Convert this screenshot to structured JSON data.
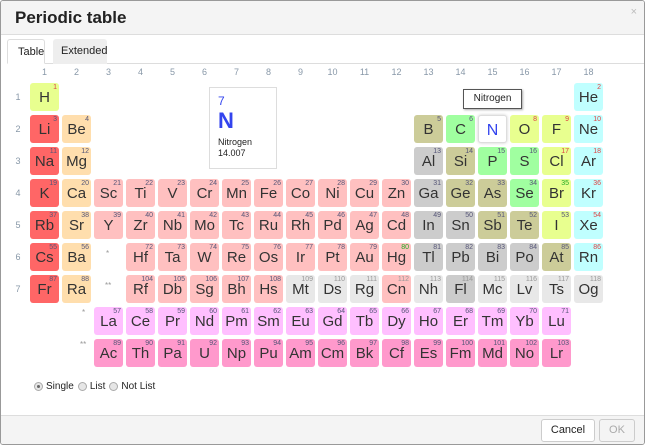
{
  "dialog": {
    "title": "Periodic table",
    "close_label": "×"
  },
  "tabs": [
    {
      "label": "Table",
      "active": true
    },
    {
      "label": "Extended",
      "active": false
    }
  ],
  "groups": [
    "1",
    "2",
    "3",
    "4",
    "5",
    "6",
    "7",
    "8",
    "9",
    "10",
    "11",
    "12",
    "13",
    "14",
    "15",
    "16",
    "17",
    "18"
  ],
  "periods": [
    "1",
    "2",
    "3",
    "4",
    "5",
    "6",
    "7"
  ],
  "markers": {
    "lanthanide": "*",
    "actinide": "**"
  },
  "selected": {
    "number": "7",
    "symbol": "N",
    "name": "Nitrogen",
    "mass": "14.007"
  },
  "tooltip": "Nitrogen",
  "category_colors": {
    "am": "#ff6666",
    "ae": "#ffdead",
    "tm": "#ffc0c0",
    "pt": "#cccccc",
    "md": "#cccc99",
    "nm": "#a0ffa0",
    "hl": "#e8ff8f",
    "ng": "#c0ffff",
    "un": "#e8e8e8",
    "la": "#ffbfff",
    "ac": "#ff99cc"
  },
  "elements": [
    [
      "H",
      1,
      1,
      1,
      "hl",
      "g"
    ],
    [
      "He",
      2,
      1,
      18,
      "ng",
      "g"
    ],
    [
      "Li",
      3,
      2,
      1,
      "am",
      "s"
    ],
    [
      "Be",
      4,
      2,
      2,
      "ae",
      "s"
    ],
    [
      "B",
      5,
      2,
      13,
      "md",
      "s"
    ],
    [
      "C",
      6,
      2,
      14,
      "nm",
      "s"
    ],
    [
      "N",
      7,
      2,
      15,
      "nm",
      "g"
    ],
    [
      "O",
      8,
      2,
      16,
      "hl",
      "g"
    ],
    [
      "F",
      9,
      2,
      17,
      "hl",
      "g"
    ],
    [
      "Ne",
      10,
      2,
      18,
      "ng",
      "g"
    ],
    [
      "Na",
      11,
      3,
      1,
      "am",
      "s"
    ],
    [
      "Mg",
      12,
      3,
      2,
      "ae",
      "s"
    ],
    [
      "Al",
      13,
      3,
      13,
      "pt",
      "s"
    ],
    [
      "Si",
      14,
      3,
      14,
      "md",
      "s"
    ],
    [
      "P",
      15,
      3,
      15,
      "nm",
      "s"
    ],
    [
      "S",
      16,
      3,
      16,
      "nm",
      "s"
    ],
    [
      "Cl",
      17,
      3,
      17,
      "hl",
      "g"
    ],
    [
      "Ar",
      18,
      3,
      18,
      "ng",
      "g"
    ],
    [
      "K",
      19,
      4,
      1,
      "am",
      "s"
    ],
    [
      "Ca",
      20,
      4,
      2,
      "ae",
      "s"
    ],
    [
      "Sc",
      21,
      4,
      3,
      "tm",
      "s"
    ],
    [
      "Ti",
      22,
      4,
      4,
      "tm",
      "s"
    ],
    [
      "V",
      23,
      4,
      5,
      "tm",
      "s"
    ],
    [
      "Cr",
      24,
      4,
      6,
      "tm",
      "s"
    ],
    [
      "Mn",
      25,
      4,
      7,
      "tm",
      "s"
    ],
    [
      "Fe",
      26,
      4,
      8,
      "tm",
      "s"
    ],
    [
      "Co",
      27,
      4,
      9,
      "tm",
      "s"
    ],
    [
      "Ni",
      28,
      4,
      10,
      "tm",
      "s"
    ],
    [
      "Cu",
      29,
      4,
      11,
      "tm",
      "s"
    ],
    [
      "Zn",
      30,
      4,
      12,
      "tm",
      "s"
    ],
    [
      "Ga",
      31,
      4,
      13,
      "pt",
      "s"
    ],
    [
      "Ge",
      32,
      4,
      14,
      "md",
      "s"
    ],
    [
      "As",
      33,
      4,
      15,
      "md",
      "s"
    ],
    [
      "Se",
      34,
      4,
      16,
      "nm",
      "s"
    ],
    [
      "Br",
      35,
      4,
      17,
      "hl",
      "l"
    ],
    [
      "Kr",
      36,
      4,
      18,
      "ng",
      "g"
    ],
    [
      "Rb",
      37,
      5,
      1,
      "am",
      "s"
    ],
    [
      "Sr",
      38,
      5,
      2,
      "ae",
      "s"
    ],
    [
      "Y",
      39,
      5,
      3,
      "tm",
      "s"
    ],
    [
      "Zr",
      40,
      5,
      4,
      "tm",
      "s"
    ],
    [
      "Nb",
      41,
      5,
      5,
      "tm",
      "s"
    ],
    [
      "Mo",
      42,
      5,
      6,
      "tm",
      "s"
    ],
    [
      "Tc",
      43,
      5,
      7,
      "tm",
      "s"
    ],
    [
      "Ru",
      44,
      5,
      8,
      "tm",
      "s"
    ],
    [
      "Rh",
      45,
      5,
      9,
      "tm",
      "s"
    ],
    [
      "Pd",
      46,
      5,
      10,
      "tm",
      "s"
    ],
    [
      "Ag",
      47,
      5,
      11,
      "tm",
      "s"
    ],
    [
      "Cd",
      48,
      5,
      12,
      "tm",
      "s"
    ],
    [
      "In",
      49,
      5,
      13,
      "pt",
      "s"
    ],
    [
      "Sn",
      50,
      5,
      14,
      "pt",
      "s"
    ],
    [
      "Sb",
      51,
      5,
      15,
      "md",
      "s"
    ],
    [
      "Te",
      52,
      5,
      16,
      "md",
      "s"
    ],
    [
      "I",
      53,
      5,
      17,
      "hl",
      "s"
    ],
    [
      "Xe",
      54,
      5,
      18,
      "ng",
      "g"
    ],
    [
      "Cs",
      55,
      6,
      1,
      "am",
      "s"
    ],
    [
      "Ba",
      56,
      6,
      2,
      "ae",
      "s"
    ],
    [
      "Hf",
      72,
      6,
      4,
      "tm",
      "s"
    ],
    [
      "Ta",
      73,
      6,
      5,
      "tm",
      "s"
    ],
    [
      "W",
      74,
      6,
      6,
      "tm",
      "s"
    ],
    [
      "Re",
      75,
      6,
      7,
      "tm",
      "s"
    ],
    [
      "Os",
      76,
      6,
      8,
      "tm",
      "s"
    ],
    [
      "Ir",
      77,
      6,
      9,
      "tm",
      "s"
    ],
    [
      "Pt",
      78,
      6,
      10,
      "tm",
      "s"
    ],
    [
      "Au",
      79,
      6,
      11,
      "tm",
      "s"
    ],
    [
      "Hg",
      80,
      6,
      12,
      "tm",
      "l"
    ],
    [
      "Tl",
      81,
      6,
      13,
      "pt",
      "s"
    ],
    [
      "Pb",
      82,
      6,
      14,
      "pt",
      "s"
    ],
    [
      "Bi",
      83,
      6,
      15,
      "pt",
      "s"
    ],
    [
      "Po",
      84,
      6,
      16,
      "pt",
      "s"
    ],
    [
      "At",
      85,
      6,
      17,
      "md",
      "s"
    ],
    [
      "Rn",
      86,
      6,
      18,
      "ng",
      "g"
    ],
    [
      "Fr",
      87,
      7,
      1,
      "am",
      "s"
    ],
    [
      "Ra",
      88,
      7,
      2,
      "ae",
      "s"
    ],
    [
      "Rf",
      104,
      7,
      4,
      "tm",
      "s"
    ],
    [
      "Db",
      105,
      7,
      5,
      "tm",
      "s"
    ],
    [
      "Sg",
      106,
      7,
      6,
      "tm",
      "s"
    ],
    [
      "Bh",
      107,
      7,
      7,
      "tm",
      "s"
    ],
    [
      "Hs",
      108,
      7,
      8,
      "tm",
      "s"
    ],
    [
      "Mt",
      109,
      7,
      9,
      "un",
      "x"
    ],
    [
      "Ds",
      110,
      7,
      10,
      "un",
      "x"
    ],
    [
      "Rg",
      111,
      7,
      11,
      "un",
      "x"
    ],
    [
      "Cn",
      112,
      7,
      12,
      "tm",
      "x"
    ],
    [
      "Nh",
      113,
      7,
      13,
      "un",
      "x"
    ],
    [
      "Fl",
      114,
      7,
      14,
      "pt",
      "x"
    ],
    [
      "Mc",
      115,
      7,
      15,
      "un",
      "x"
    ],
    [
      "Lv",
      116,
      7,
      16,
      "un",
      "x"
    ],
    [
      "Ts",
      117,
      7,
      17,
      "un",
      "x"
    ],
    [
      "Og",
      118,
      7,
      18,
      "un",
      "x"
    ],
    [
      "La",
      57,
      8,
      3,
      "la",
      "s"
    ],
    [
      "Ce",
      58,
      8,
      4,
      "la",
      "s"
    ],
    [
      "Pr",
      59,
      8,
      5,
      "la",
      "s"
    ],
    [
      "Nd",
      60,
      8,
      6,
      "la",
      "s"
    ],
    [
      "Pm",
      61,
      8,
      7,
      "la",
      "s"
    ],
    [
      "Sm",
      62,
      8,
      8,
      "la",
      "s"
    ],
    [
      "Eu",
      63,
      8,
      9,
      "la",
      "s"
    ],
    [
      "Gd",
      64,
      8,
      10,
      "la",
      "s"
    ],
    [
      "Tb",
      65,
      8,
      11,
      "la",
      "s"
    ],
    [
      "Dy",
      66,
      8,
      12,
      "la",
      "s"
    ],
    [
      "Ho",
      67,
      8,
      13,
      "la",
      "s"
    ],
    [
      "Er",
      68,
      8,
      14,
      "la",
      "s"
    ],
    [
      "Tm",
      69,
      8,
      15,
      "la",
      "s"
    ],
    [
      "Yb",
      70,
      8,
      16,
      "la",
      "s"
    ],
    [
      "Lu",
      71,
      8,
      17,
      "la",
      "s"
    ],
    [
      "Ac",
      89,
      9,
      3,
      "ac",
      "s"
    ],
    [
      "Th",
      90,
      9,
      4,
      "ac",
      "s"
    ],
    [
      "Pa",
      91,
      9,
      5,
      "ac",
      "s"
    ],
    [
      "U",
      92,
      9,
      6,
      "ac",
      "s"
    ],
    [
      "Np",
      93,
      9,
      7,
      "ac",
      "s"
    ],
    [
      "Pu",
      94,
      9,
      8,
      "ac",
      "s"
    ],
    [
      "Am",
      95,
      9,
      9,
      "ac",
      "s"
    ],
    [
      "Cm",
      96,
      9,
      10,
      "ac",
      "s"
    ],
    [
      "Bk",
      97,
      9,
      11,
      "ac",
      "s"
    ],
    [
      "Cf",
      98,
      9,
      12,
      "ac",
      "s"
    ],
    [
      "Es",
      99,
      9,
      13,
      "ac",
      "s"
    ],
    [
      "Fm",
      100,
      9,
      14,
      "ac",
      "s"
    ],
    [
      "Md",
      101,
      9,
      15,
      "ac",
      "s"
    ],
    [
      "No",
      102,
      9,
      16,
      "ac",
      "s"
    ],
    [
      "Lr",
      103,
      9,
      17,
      "ac",
      "s"
    ]
  ],
  "selection_mode": {
    "options": [
      "Single",
      "List",
      "Not List"
    ],
    "selected": "Single"
  },
  "footer": {
    "cancel_label": "Cancel",
    "ok_label": "OK",
    "ok_enabled": false
  }
}
